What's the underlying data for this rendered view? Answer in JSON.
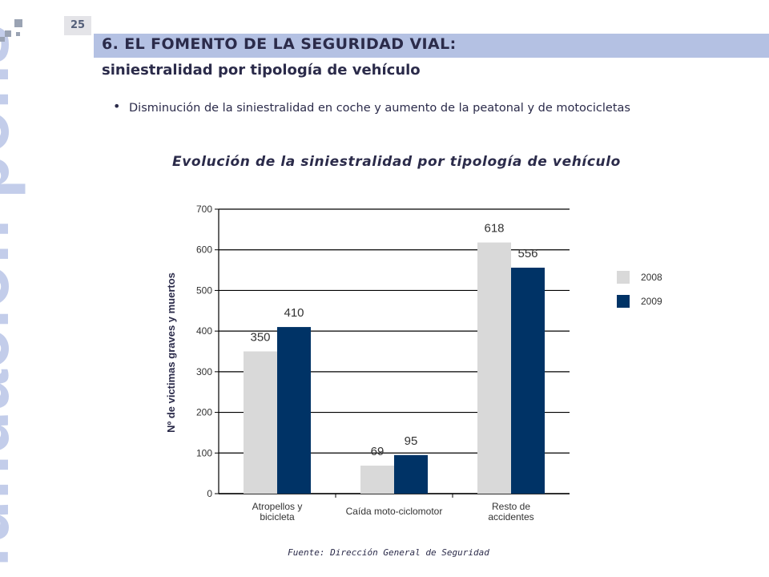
{
  "page_number": "25",
  "watermark_text": "fundación pons",
  "header": {
    "title": "6. EL FOMENTO DE LA SEGURIDAD VIAL:",
    "subtitle": "siniestralidad por tipología de vehículo"
  },
  "bullet": "Disminución de la siniestralidad en coche y aumento de la peatonal y de motocicletas",
  "source": "Fuente: Dirección General de Seguridad",
  "colors": {
    "series_2008": "#d9d9d9",
    "series_2009": "#003366",
    "title_bar": "#b4c1e3",
    "text": "#2b2b4a"
  },
  "chart_data": {
    "type": "bar",
    "title": "Evolución de la siniestralidad por tipología de vehículo",
    "ylabel": "Nº de victimas graves y muertos",
    "xlabel": "",
    "ylim": [
      0,
      700
    ],
    "yticks": [
      0,
      100,
      200,
      300,
      400,
      500,
      600,
      700
    ],
    "grid": true,
    "legend": "right",
    "categories": [
      "Atropellos y bicicleta",
      "Caída moto-ciclomotor",
      "Resto de accidentes"
    ],
    "category_lines": [
      [
        "Atropellos y",
        "bicicleta"
      ],
      [
        "Caída moto-ciclomotor"
      ],
      [
        "Resto de",
        "accidentes"
      ]
    ],
    "series": [
      {
        "name": "2008",
        "values": [
          350,
          69,
          618
        ]
      },
      {
        "name": "2009",
        "values": [
          410,
          95,
          556
        ]
      }
    ]
  }
}
